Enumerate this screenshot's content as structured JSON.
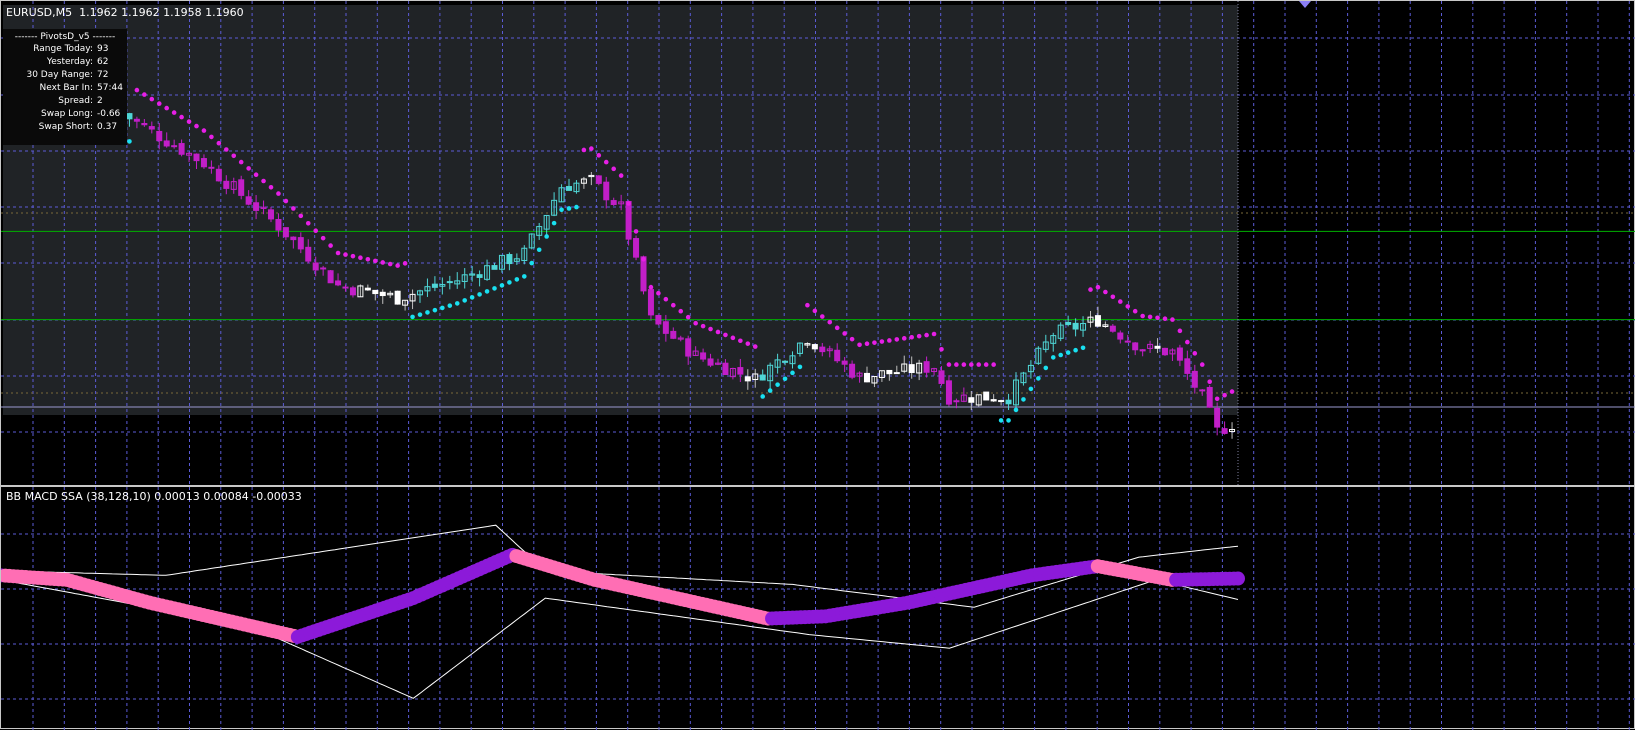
{
  "main_header": "EURUSD,M5  1.1962 1.1962 1.1958 1.1960",
  "info_box": {
    "title": "-------  PivotsD_v5  -------",
    "rows": [
      {
        "label": "Range  Today:",
        "value": "93"
      },
      {
        "label": "Yesterday:",
        "value": "62"
      },
      {
        "label": "30 Day Range:",
        "value": "72"
      },
      {
        "label": "Next Bar In:",
        "value": "57:44"
      },
      {
        "label": "Spread:",
        "value": "2"
      },
      {
        "label": "Swap  Long:",
        "value": "-0.66"
      },
      {
        "label": "Swap  Short:",
        "value": "0.37"
      }
    ]
  },
  "sub_header": "BB MACD SSA (38,128,10) 0.00013 0.00084 -0.00033",
  "colors": {
    "background": "#000000",
    "plot_area": "#202326",
    "grid": "#5b5bd6",
    "pivot_line": "#00b000",
    "bull_candle": "#ffffff",
    "bull_trend_candle": "#4fd6d6",
    "bear_trend_candle": "#c21fc8",
    "dots_down": "#e61fe6",
    "dots_up": "#19e0f0",
    "macd_up": "#8c1ad9",
    "macd_down": "#ff6eb4",
    "bands": "#ffffff",
    "marker": "#8b7ff5"
  },
  "chart_data": [
    {
      "type": "candlestick",
      "symbol": "EURUSD",
      "timeframe": "M5",
      "ohlc_last": {
        "open": 1.1962,
        "high": 1.1962,
        "low": 1.1958,
        "close": 1.196
      },
      "candles_count": 150,
      "price_path": [
        [
          0,
          1.2145
        ],
        [
          12,
          1.2115
        ],
        [
          22,
          1.208
        ],
        [
          30,
          1.2047
        ],
        [
          38,
          1.204
        ],
        [
          46,
          1.205
        ],
        [
          55,
          1.2065
        ],
        [
          60,
          1.2102
        ],
        [
          64,
          1.2105
        ],
        [
          68,
          1.209
        ],
        [
          72,
          1.2028
        ],
        [
          78,
          1.2008
        ],
        [
          86,
          1.1995
        ],
        [
          93,
          1.2018
        ],
        [
          100,
          1.1996
        ],
        [
          110,
          1.2002
        ],
        [
          112,
          1.1985
        ],
        [
          120,
          1.1985
        ],
        [
          126,
          1.202
        ],
        [
          132,
          1.2028
        ],
        [
          138,
          1.2012
        ],
        [
          142,
          1.201
        ],
        [
          146,
          1.1985
        ],
        [
          148,
          1.1966
        ],
        [
          150,
          1.197
        ]
      ],
      "pivot_lines": [
        1.2077,
        1.2028
      ]
    },
    {
      "type": "line",
      "name": "BB MACD SSA (38,128,10)",
      "values_shown": [
        0.00013,
        0.00084,
        -0.00033
      ],
      "macd_path": [
        [
          0,
          0.0002
        ],
        [
          8,
          0.0001
        ],
        [
          18,
          -0.0004
        ],
        [
          36,
          -0.00115
        ],
        [
          50,
          -0.0003
        ],
        [
          62,
          0.00065
        ],
        [
          72,
          0.0001
        ],
        [
          93,
          -0.00075
        ],
        [
          100,
          -0.0007
        ],
        [
          110,
          -0.0004
        ],
        [
          125,
          0.0002
        ],
        [
          133,
          0.0004
        ],
        [
          142,
          0.0001
        ],
        [
          150,
          0.00013
        ]
      ],
      "upper_band_path": [
        [
          0,
          0.0003
        ],
        [
          20,
          0.0002
        ],
        [
          60,
          0.0013
        ],
        [
          66,
          0.0003
        ],
        [
          96,
          0.0
        ],
        [
          118,
          -0.0005
        ],
        [
          138,
          0.0006
        ],
        [
          150,
          0.00084
        ]
      ],
      "lower_band_path": [
        [
          0,
          0.0001
        ],
        [
          30,
          -0.0009
        ],
        [
          50,
          -0.0025
        ],
        [
          66,
          -0.0003
        ],
        [
          98,
          -0.0011
        ],
        [
          115,
          -0.0014
        ],
        [
          140,
          0.0001
        ],
        [
          150,
          -0.00033
        ]
      ]
    }
  ]
}
